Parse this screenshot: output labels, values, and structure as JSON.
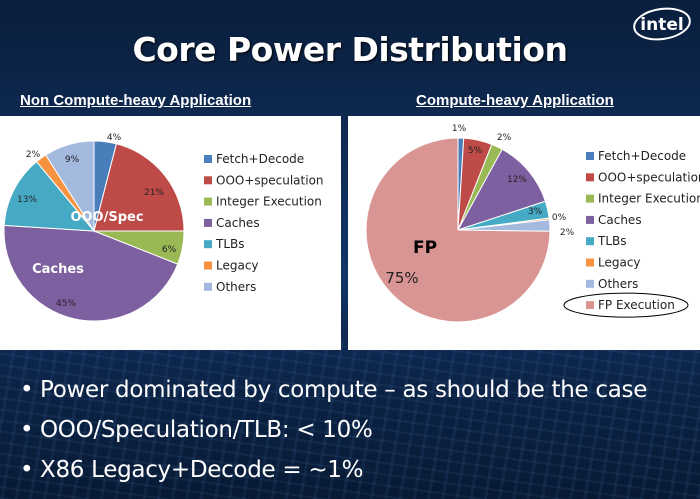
{
  "slide": {
    "title": "Core Power Distribution",
    "brand": "intel",
    "bullets": [
      "Power dominated by compute – as should be the case",
      "OOO/Speculation/TLB: < 10%",
      "X86 Legacy+Decode = ~1%"
    ]
  },
  "chart_data": [
    {
      "type": "pie",
      "title": "Non Compute-heavy Application",
      "categories": [
        "Fetch+Decode",
        "OOO+speculation",
        "Integer Execution",
        "Caches",
        "TLBs",
        "Legacy",
        "Others"
      ],
      "values": [
        4,
        21,
        6,
        45,
        13,
        2,
        9
      ],
      "labels": [
        "4%",
        "21%",
        "6%",
        "45%",
        "13%",
        "2%",
        "9%"
      ],
      "colors": [
        "#4a7ebb",
        "#be4b48",
        "#98b954",
        "#7d60a0",
        "#46aac5",
        "#f69240",
        "#a3b9de"
      ],
      "annotations": [
        "OOO/Spec",
        "Caches"
      ],
      "legend": "right"
    },
    {
      "type": "pie",
      "title": "Compute-heavy Application",
      "categories": [
        "Fetch+Decode",
        "OOO+speculation",
        "Integer Execution",
        "Caches",
        "TLBs",
        "Legacy",
        "Others",
        "FP Execution"
      ],
      "values": [
        1,
        5,
        2,
        12,
        3,
        0.3,
        2,
        75
      ],
      "labels": [
        "1%",
        "5%",
        "2%",
        "12%",
        "3%",
        "0%",
        "2%",
        "75%"
      ],
      "colors": [
        "#4a7ebb",
        "#be4b48",
        "#98b954",
        "#7d60a0",
        "#46aac5",
        "#f69240",
        "#a3b9de",
        "#d99593"
      ],
      "annotations": [
        "FP"
      ],
      "legend": "right",
      "highlighted_legend_entry": "FP Execution"
    }
  ]
}
